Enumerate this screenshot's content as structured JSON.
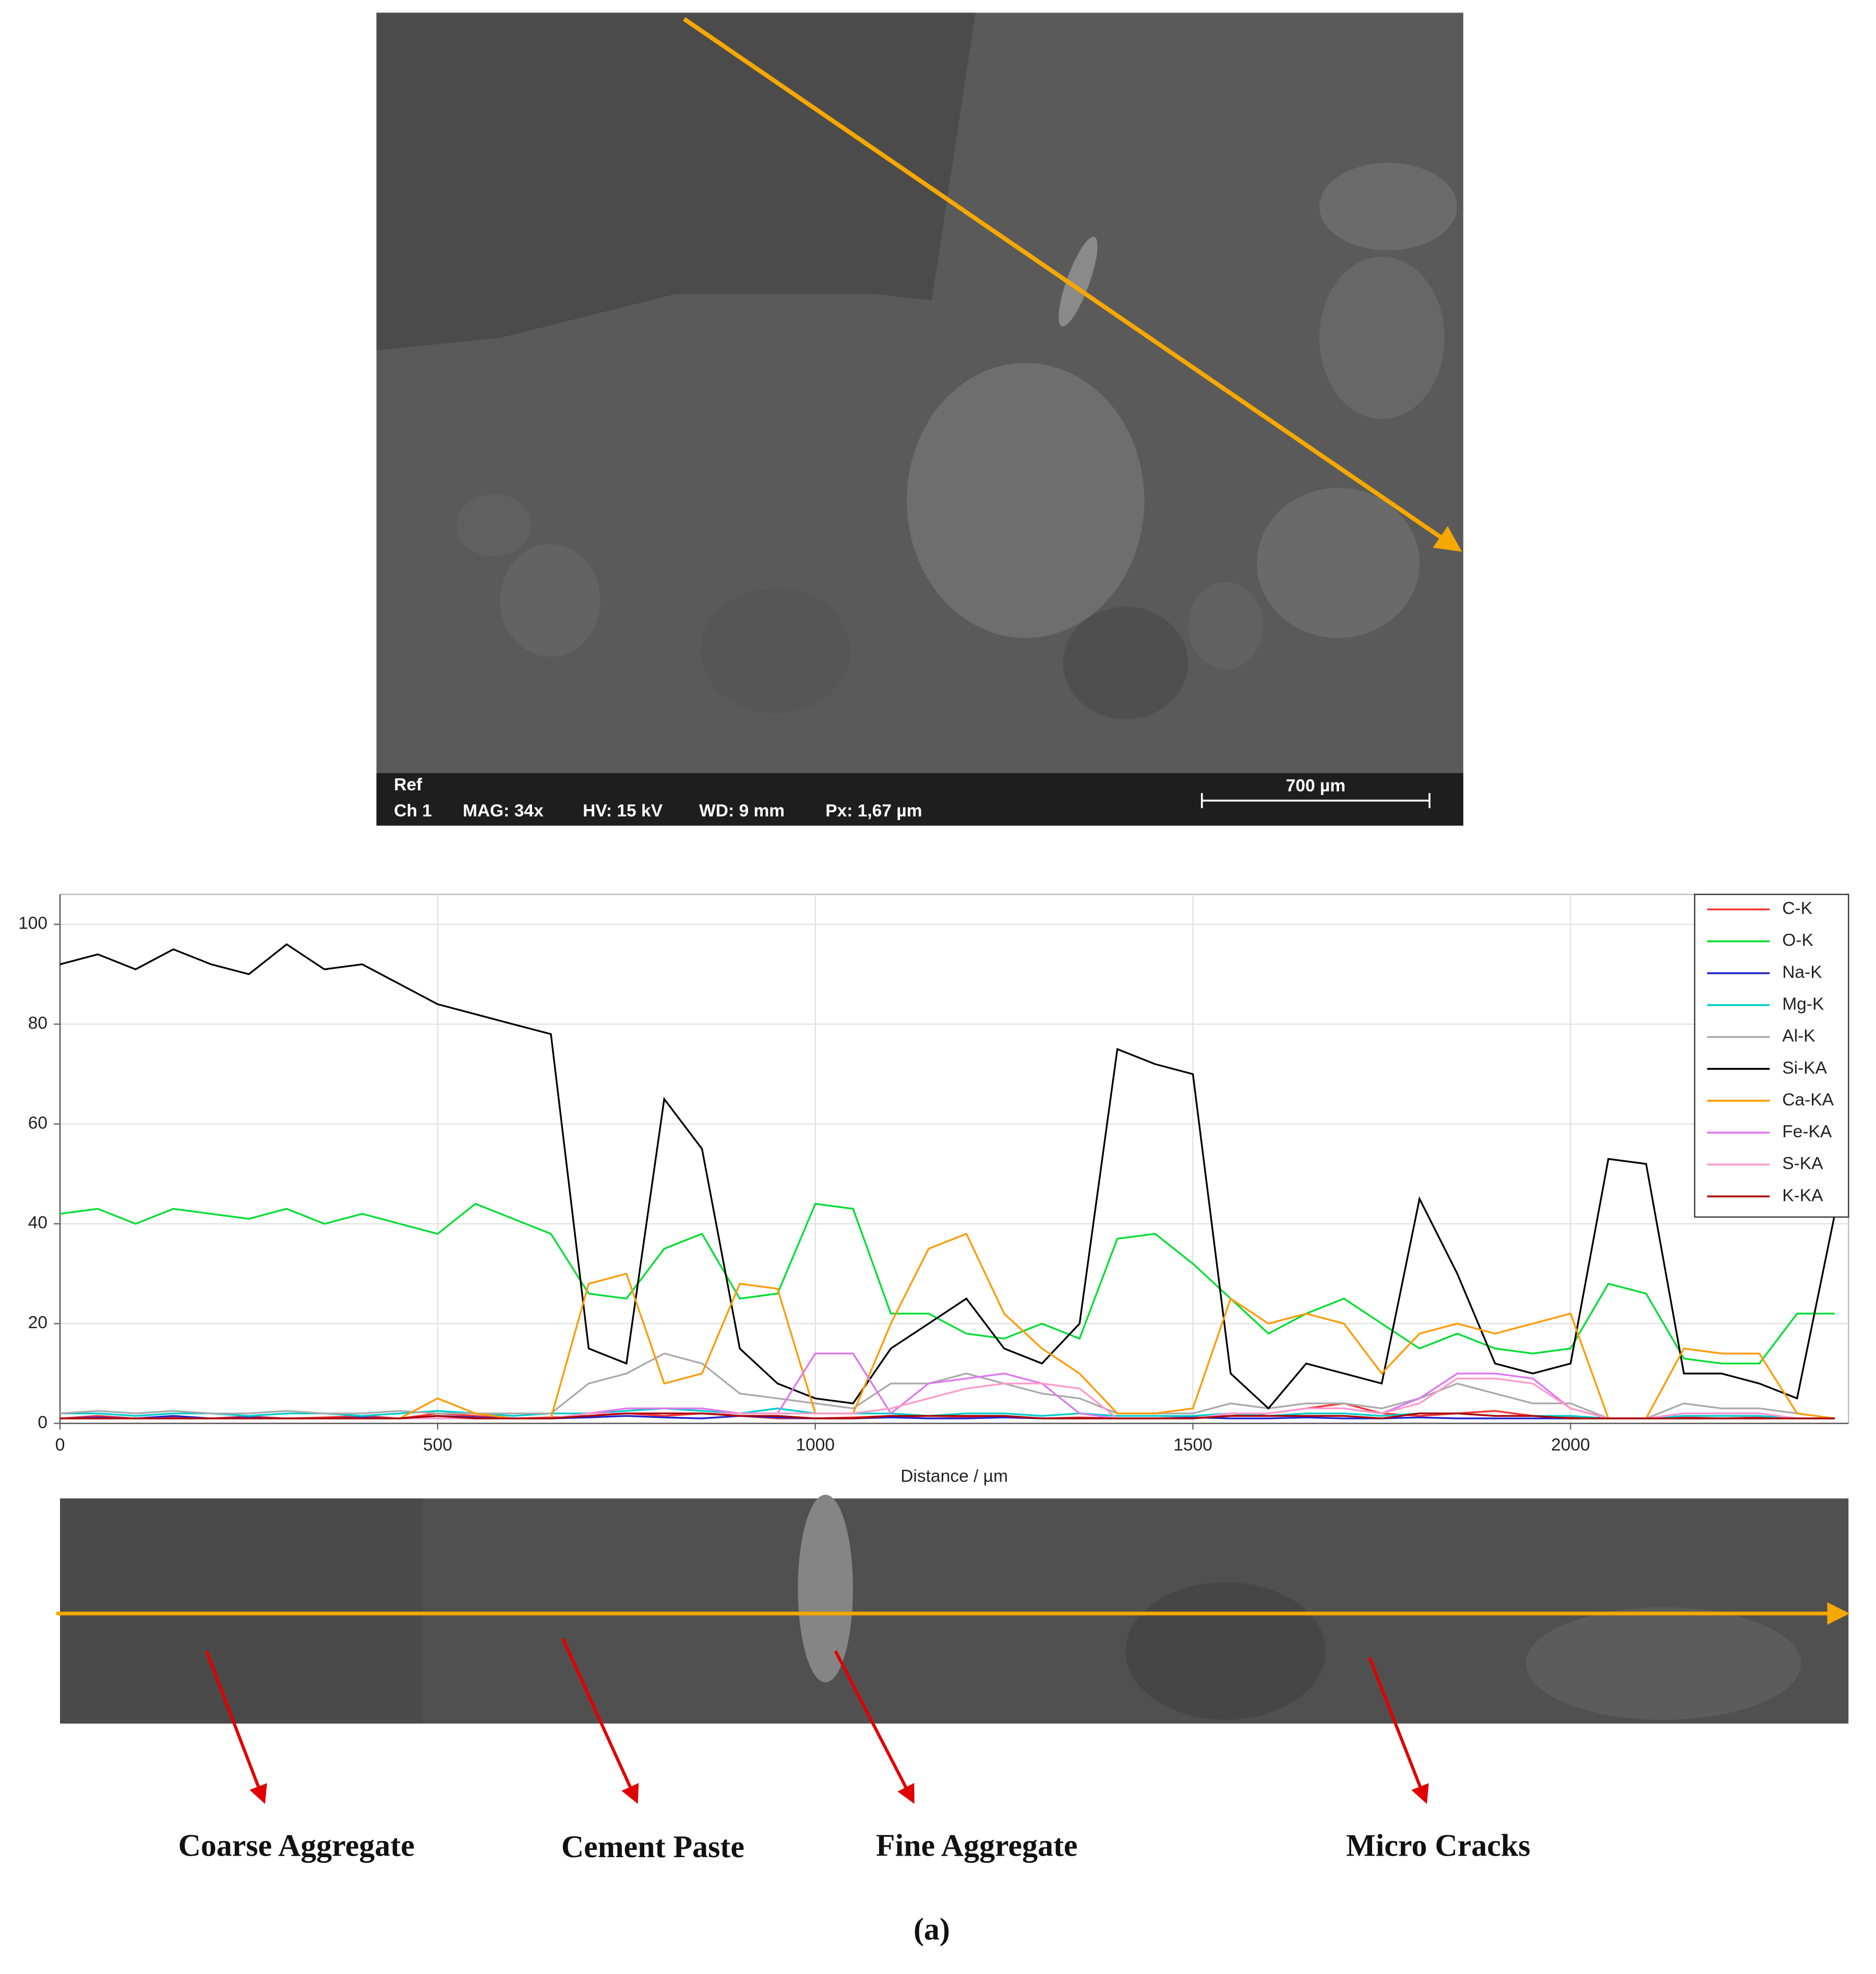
{
  "image_panel": {
    "label": "Ref",
    "info": [
      "Ch 1",
      "MAG: 34x",
      "HV: 15 kV",
      "WD: 9 mm",
      "Px: 1,67 µm"
    ],
    "scale_bar": "700 µm"
  },
  "chart_data": {
    "type": "line",
    "x_label": "Distance / µm",
    "xlim": [
      0,
      2368
    ],
    "ylim": [
      0,
      106
    ],
    "xticks": [
      0,
      500,
      1000,
      1500,
      2000
    ],
    "yticks": [
      0,
      20,
      40,
      60,
      80,
      100
    ],
    "grid": true,
    "legend": "top-right",
    "x": [
      0,
      50,
      100,
      150,
      200,
      250,
      300,
      350,
      400,
      450,
      500,
      550,
      600,
      650,
      700,
      750,
      800,
      850,
      900,
      950,
      1000,
      1050,
      1100,
      1150,
      1200,
      1250,
      1300,
      1350,
      1400,
      1450,
      1500,
      1550,
      1600,
      1650,
      1700,
      1750,
      1800,
      1850,
      1900,
      1950,
      2000,
      2050,
      2100,
      2150,
      2200,
      2250,
      2300,
      2350
    ],
    "series": [
      {
        "name": "C-K",
        "color": "#ff3030",
        "values": [
          1,
          1.5,
          1,
          1.2,
          1,
          1.4,
          1,
          1.2,
          1.5,
          1,
          2,
          1.5,
          1,
          1.2,
          1.5,
          2,
          1.5,
          2,
          1.5,
          1,
          1,
          1.2,
          1.5,
          1,
          1.2,
          1.5,
          1,
          1.2,
          1,
          1,
          1.2,
          1.5,
          2,
          3,
          4,
          2,
          1.5,
          2,
          2.5,
          1.5,
          1.2,
          1,
          1,
          1.2,
          1,
          1.2,
          1,
          1
        ]
      },
      {
        "name": "O-K",
        "color": "#00dd33",
        "values": [
          42,
          43,
          40,
          43,
          42,
          41,
          43,
          40,
          42,
          40,
          38,
          44,
          41,
          38,
          26,
          25,
          35,
          38,
          25,
          26,
          44,
          43,
          22,
          22,
          18,
          17,
          20,
          17,
          37,
          38,
          32,
          25,
          18,
          22,
          25,
          20,
          15,
          18,
          15,
          14,
          15,
          28,
          26,
          13,
          12,
          12,
          22,
          22
        ]
      },
      {
        "name": "Na-K",
        "color": "#2020cc",
        "values": [
          1,
          1.2,
          1,
          1.5,
          1,
          1.2,
          1,
          1,
          1.2,
          1,
          1.5,
          1.2,
          1,
          1,
          1.2,
          1.5,
          1.2,
          1,
          1.5,
          1.2,
          1,
          1,
          1.2,
          1,
          1,
          1.2,
          1,
          1,
          1,
          1,
          1.2,
          1,
          1,
          1.2,
          1,
          1,
          1.2,
          1,
          1,
          1,
          1,
          1,
          1,
          1,
          1,
          1,
          1,
          1
        ]
      },
      {
        "name": "Mg-K",
        "color": "#00cccc",
        "values": [
          2,
          2,
          1.5,
          2,
          2,
          1.5,
          2,
          2,
          1.5,
          2,
          2.5,
          2,
          1.5,
          2,
          2,
          2.5,
          3,
          2.5,
          2,
          3,
          2,
          2,
          2,
          1.5,
          2,
          2,
          1.5,
          2,
          1.5,
          1.5,
          1.5,
          2,
          1.5,
          2,
          2,
          1.5,
          2,
          2,
          1.5,
          1.5,
          1.5,
          1,
          1,
          1.5,
          1.5,
          1.5,
          1,
          1
        ]
      },
      {
        "name": "Al-K",
        "color": "#aaaaaa",
        "values": [
          2,
          2.5,
          2,
          2.5,
          2,
          2,
          2.5,
          2,
          2,
          2.5,
          2,
          2,
          2,
          2,
          8,
          10,
          14,
          12,
          6,
          5,
          4,
          3,
          8,
          8,
          10,
          8,
          6,
          5,
          2,
          2,
          2,
          4,
          3,
          4,
          4,
          3,
          5,
          8,
          6,
          4,
          4,
          1,
          1,
          4,
          3,
          3,
          2,
          1
        ]
      },
      {
        "name": "Si-KA",
        "color": "#000000",
        "values": [
          92,
          94,
          91,
          95,
          92,
          90,
          96,
          91,
          92,
          88,
          84,
          82,
          80,
          78,
          15,
          12,
          65,
          55,
          15,
          8,
          5,
          4,
          15,
          20,
          25,
          15,
          12,
          20,
          75,
          72,
          70,
          10,
          3,
          12,
          10,
          8,
          45,
          30,
          12,
          10,
          12,
          53,
          52,
          10,
          10,
          8,
          5,
          42
        ]
      },
      {
        "name": "Ca-KA",
        "color": "#ff9900",
        "values": [
          1,
          1,
          1,
          1,
          1,
          1,
          1,
          1,
          1,
          1,
          5,
          2,
          1,
          1,
          28,
          30,
          8,
          10,
          28,
          27,
          2,
          2,
          20,
          35,
          38,
          22,
          15,
          10,
          2,
          2,
          3,
          25,
          20,
          22,
          20,
          10,
          18,
          20,
          18,
          20,
          22,
          1,
          1,
          15,
          14,
          14,
          2,
          1
        ]
      },
      {
        "name": "Fe-KA",
        "color": "#dd77ee",
        "values": [
          1,
          1,
          1,
          1,
          1,
          1,
          1,
          1,
          1,
          1,
          1,
          1,
          1,
          1,
          2,
          3,
          3,
          3,
          2,
          2,
          14,
          14,
          2,
          8,
          9,
          10,
          8,
          2,
          1,
          1,
          1,
          2,
          2,
          3,
          3,
          2,
          5,
          10,
          10,
          9,
          3,
          1,
          1,
          2,
          2,
          2,
          1,
          1
        ]
      },
      {
        "name": "S-KA",
        "color": "#ff99cc",
        "values": [
          1,
          1,
          1,
          1,
          1,
          1,
          1,
          1,
          1,
          1,
          1,
          1,
          1,
          1,
          2,
          2,
          2,
          2,
          2,
          2,
          2,
          2,
          3,
          5,
          7,
          8,
          8,
          7,
          1,
          1,
          1,
          2,
          2,
          3,
          3,
          2,
          4,
          9,
          9,
          8,
          3,
          1,
          1,
          2,
          2,
          2,
          1,
          1
        ]
      },
      {
        "name": "K-KA",
        "color": "#aa0000",
        "values": [
          1,
          1,
          1,
          1,
          1,
          1,
          1,
          1,
          1,
          1,
          1.5,
          1,
          1,
          1,
          1.5,
          2,
          2,
          2,
          1.5,
          1.5,
          1,
          1,
          1.5,
          1.5,
          1.5,
          1.5,
          1,
          1,
          1,
          1,
          1,
          1.5,
          1.5,
          1.5,
          1.5,
          1,
          2,
          2,
          1.5,
          1.5,
          1,
          1,
          1,
          1,
          1,
          1,
          1,
          1
        ]
      }
    ]
  },
  "annotations": [
    "Coarse Aggregate",
    "Cement Paste",
    "Fine Aggregate",
    "Micro Cracks"
  ],
  "panel_label": "(a)"
}
